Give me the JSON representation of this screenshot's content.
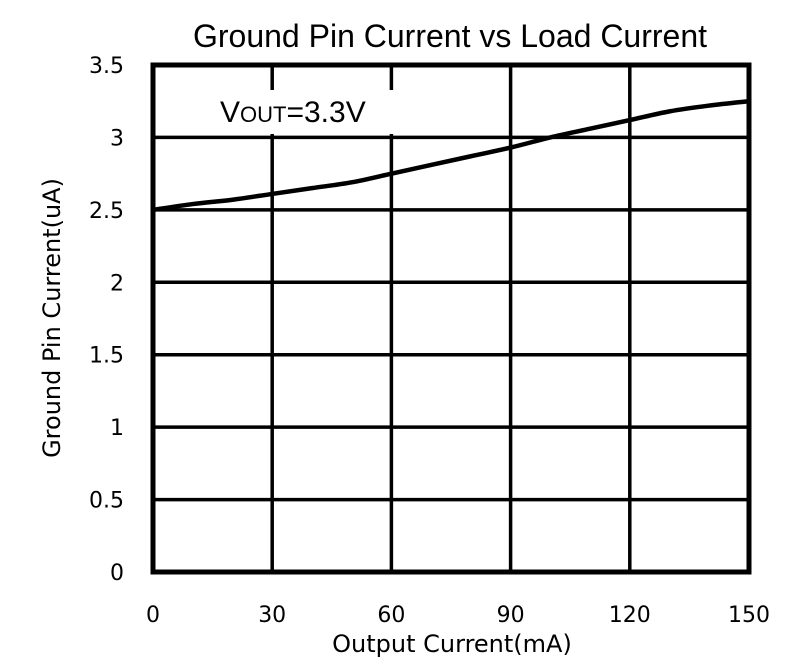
{
  "chart_data": {
    "type": "line",
    "title": "Ground Pin Current vs Load Current",
    "xlabel": "Output Current(mA)",
    "ylabel": "Ground Pin Current(uA)",
    "xlim": [
      0,
      150
    ],
    "ylim": [
      0,
      3.5
    ],
    "x_ticks": [
      "0",
      "30",
      "60",
      "90",
      "120",
      "150"
    ],
    "y_ticks": [
      "0",
      "0.5",
      "1",
      "1.5",
      "2",
      "2.5",
      "3",
      "3.5"
    ],
    "grid": true,
    "annotation": {
      "main": "V",
      "sub": "OUT",
      "value": "=3.3V"
    },
    "series": [
      {
        "x": [
          0,
          10,
          20,
          30,
          40,
          50,
          60,
          70,
          80,
          90,
          100,
          110,
          120,
          130,
          140,
          150
        ],
        "y": [
          2.5,
          2.54,
          2.57,
          2.61,
          2.65,
          2.69,
          2.75,
          2.81,
          2.87,
          2.93,
          3.0,
          3.06,
          3.12,
          3.18,
          3.22,
          3.25
        ]
      }
    ]
  }
}
